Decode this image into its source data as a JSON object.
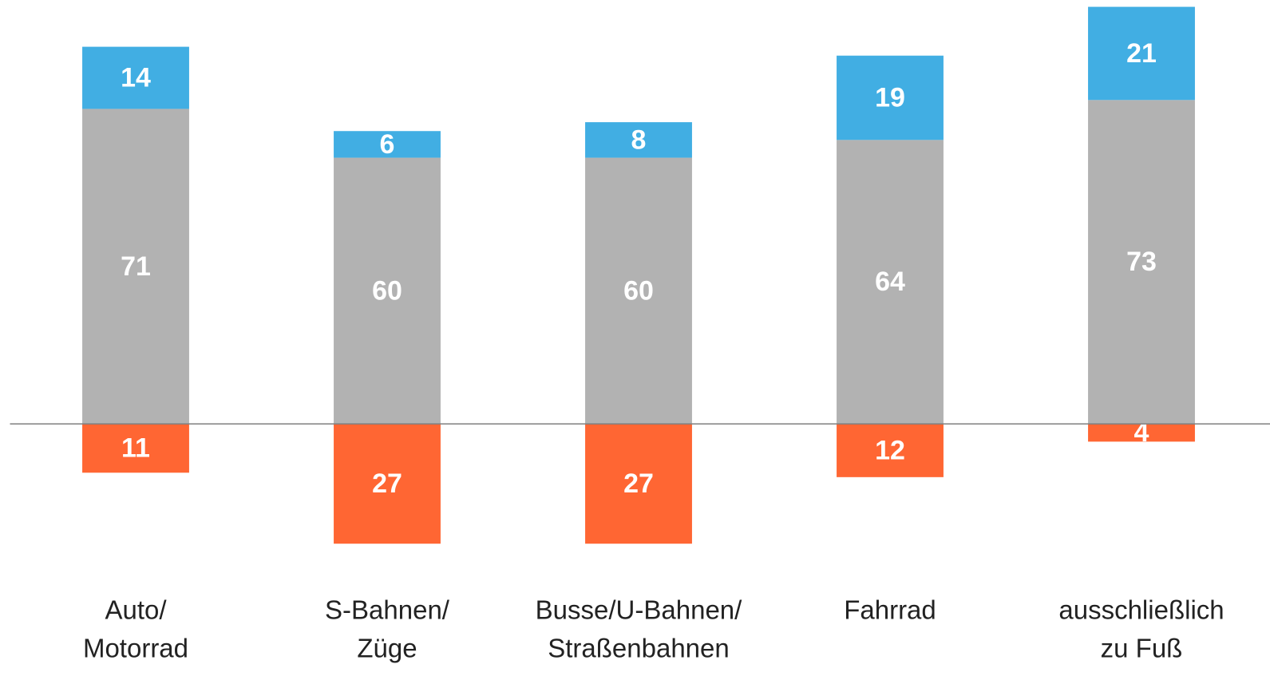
{
  "chart_data": {
    "type": "bar",
    "stacked": true,
    "categories": [
      [
        "Auto/",
        "Motorrad"
      ],
      [
        "S-Bahnen/",
        "Züge"
      ],
      [
        "Busse/U-Bahnen/",
        "Straßenbahnen"
      ],
      [
        "Fahrrad"
      ],
      [
        "ausschließlich",
        "zu Fuß"
      ]
    ],
    "series": [
      {
        "color": "#ff6633",
        "values": [
          -11,
          -27,
          -27,
          -12,
          -4
        ],
        "value_labels": [
          "11",
          "27",
          "27",
          "12",
          "4"
        ]
      },
      {
        "color": "#b2b2b2",
        "values": [
          71,
          60,
          60,
          64,
          73
        ]
      },
      {
        "color": "#41aee3",
        "values": [
          14,
          6,
          8,
          19,
          21
        ]
      }
    ],
    "ylim": [
      -57,
      95
    ]
  }
}
